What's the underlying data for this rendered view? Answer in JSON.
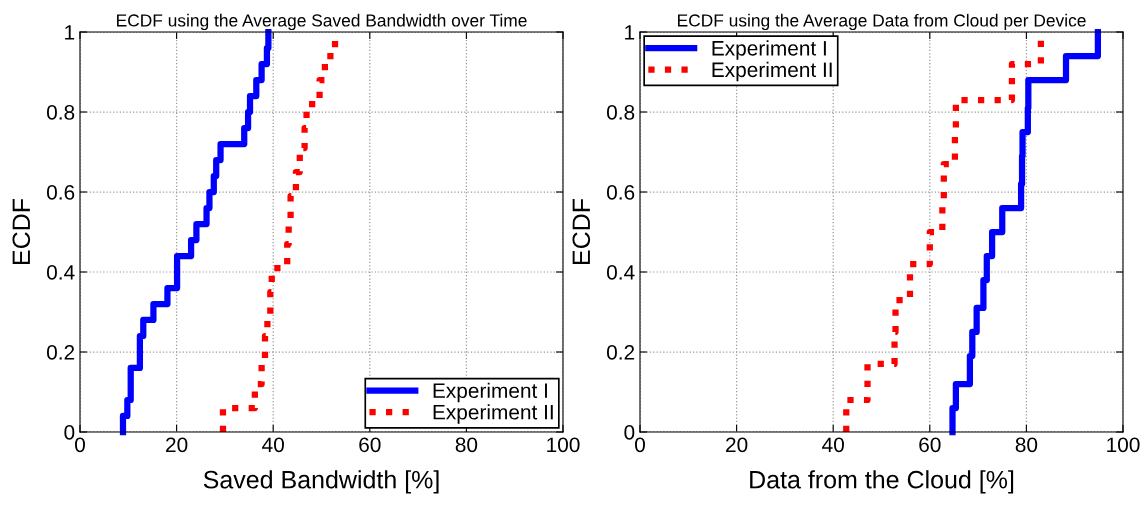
{
  "chart_data": [
    {
      "type": "step",
      "title": "ECDF using the Average Saved Bandwidth over Time",
      "xlabel": "Saved Bandwidth [%]",
      "ylabel": "ECDF",
      "xlim": [
        0,
        100
      ],
      "ylim": [
        0,
        1
      ],
      "xticks": [
        0,
        20,
        40,
        60,
        80,
        100
      ],
      "yticks": [
        0,
        0.2,
        0.4,
        0.6,
        0.8,
        1
      ],
      "grid": true,
      "legend": "bottom right",
      "series": [
        {
          "name": "Experiment I",
          "color": "#0000ff",
          "line_style": "solid",
          "x": [
            8.9,
            8.9,
            9.8,
            10.5,
            12.4,
            13.1,
            15.2,
            18.1,
            20.1,
            23.0,
            24.1,
            26.2,
            26.8,
            27.7,
            28.2,
            29.1,
            34.0,
            34.8,
            35.2,
            36.5,
            37.6,
            38.7,
            39.0
          ],
          "values": [
            0,
            0.04,
            0.08,
            0.16,
            0.24,
            0.28,
            0.32,
            0.36,
            0.44,
            0.48,
            0.52,
            0.56,
            0.6,
            0.64,
            0.68,
            0.72,
            0.76,
            0.8,
            0.84,
            0.88,
            0.92,
            0.96,
            1
          ]
        },
        {
          "name": "Experiment II",
          "color": "#ff0000",
          "line_style": "dotted",
          "x": [
            29.6,
            29.6,
            36.2,
            37.6,
            38.3,
            38.8,
            39.4,
            39.7,
            42.9,
            43.2,
            43.6,
            44.7,
            45.5,
            46.5,
            46.9,
            49.6,
            50.7,
            52.8
          ],
          "values": [
            0,
            0.06,
            0.12,
            0.18,
            0.24,
            0.29,
            0.35,
            0.41,
            0.47,
            0.53,
            0.59,
            0.65,
            0.71,
            0.76,
            0.82,
            0.88,
            0.94,
            1
          ]
        }
      ]
    },
    {
      "type": "step",
      "title": "ECDF using the Average Data from Cloud per Device",
      "xlabel": "Data from the Cloud [%]",
      "ylabel": "ECDF",
      "xlim": [
        0,
        100
      ],
      "ylim": [
        0,
        1
      ],
      "xticks": [
        0,
        20,
        40,
        60,
        80,
        100
      ],
      "yticks": [
        0,
        0.2,
        0.4,
        0.6,
        0.8,
        1
      ],
      "grid": true,
      "legend": "top left",
      "series": [
        {
          "name": "Experiment I",
          "color": "#0000ff",
          "line_style": "solid",
          "x": [
            64.7,
            64.7,
            65.4,
            68.3,
            68.8,
            69.7,
            71.1,
            71.8,
            72.9,
            75.0,
            78.9,
            79.1,
            79.2,
            80.3,
            80.4,
            88.2,
            94.8
          ],
          "values": [
            0,
            0.06,
            0.12,
            0.19,
            0.25,
            0.31,
            0.38,
            0.44,
            0.5,
            0.56,
            0.62,
            0.69,
            0.75,
            0.81,
            0.88,
            0.94,
            1
          ]
        },
        {
          "name": "Experiment II",
          "color": "#ff0000",
          "line_style": "dotted",
          "x": [
            42.7,
            42.7,
            47.1,
            52.7,
            52.9,
            55.9,
            60.0,
            62.6,
            62.9,
            65.2,
            65.4,
            77.0,
            83.0
          ],
          "values": [
            0,
            0.08,
            0.17,
            0.25,
            0.33,
            0.42,
            0.5,
            0.58,
            0.67,
            0.75,
            0.83,
            0.92,
            1
          ]
        }
      ]
    }
  ]
}
